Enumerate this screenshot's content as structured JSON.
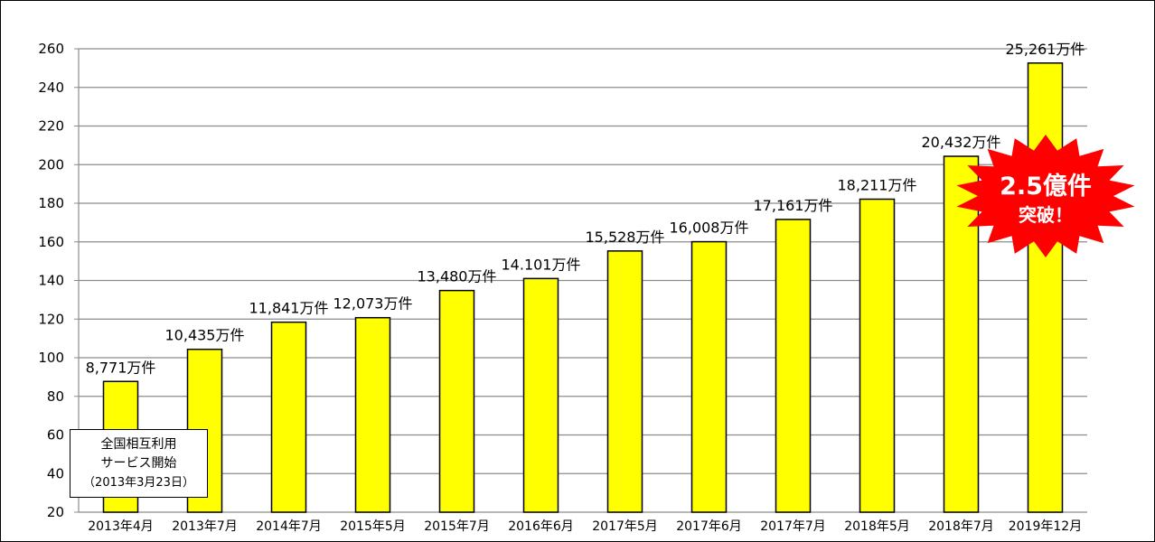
{
  "chart_data": {
    "type": "bar",
    "categories": [
      "2013年4月",
      "2013年7月",
      "2014年7月",
      "2015年5月",
      "2015年7月",
      "2016年6月",
      "2017年5月",
      "2017年6月",
      "2017年7月",
      "2018年5月",
      "2018年7月",
      "2019年12月"
    ],
    "values": [
      87.71,
      104.35,
      118.41,
      120.73,
      134.8,
      141.01,
      155.28,
      160.08,
      171.61,
      182.11,
      204.32,
      252.61
    ],
    "data_labels": [
      "8,771万件",
      "10,435万件",
      "11,841万件",
      "12,073万件",
      "13,480万件",
      "14.101万件",
      "15,528万件",
      "16,008万件",
      "17,161万件",
      "18,211万件",
      "20,432万件",
      "25,261万件"
    ],
    "ylim": [
      20,
      260
    ],
    "yticks": [
      20,
      40,
      60,
      80,
      100,
      120,
      140,
      160,
      180,
      200,
      220,
      240,
      260
    ],
    "grid": true,
    "bar_color": "#ffff00",
    "title": "",
    "xlabel": "",
    "ylabel": ""
  },
  "note": {
    "line1": "全国相互利用",
    "line2": "サービス開始",
    "line3": "（2013年3月23日）"
  },
  "burst": {
    "line1": "2.5億件",
    "line2": "突破！",
    "color": "#ff0000",
    "text_color": "#ffffff"
  }
}
